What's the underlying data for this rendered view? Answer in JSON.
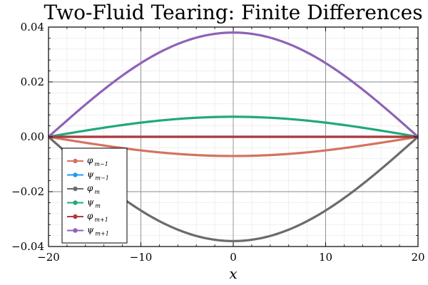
{
  "chart_data": {
    "type": "line",
    "title": "Two-Fluid Tearing: Finite Differences",
    "xlabel": "x",
    "ylabel": "",
    "xlim": [
      -20,
      20
    ],
    "ylim": [
      -0.04,
      0.04
    ],
    "xticks": [
      -20,
      -10,
      0,
      10,
      20
    ],
    "xtick_labels": [
      "−20",
      "−10",
      "0",
      "10",
      "20"
    ],
    "yticks": [
      -0.04,
      -0.02,
      0.0,
      0.02,
      0.04
    ],
    "ytick_labels": [
      "−0.04",
      "−0.02",
      "0.00",
      "0.02",
      "0.04"
    ],
    "grid": true,
    "legend_position": "bottom-left",
    "x": [
      -20,
      -15,
      -10,
      -5,
      0,
      5,
      10,
      15,
      20
    ],
    "series": [
      {
        "name": "φ_{m−1}",
        "base": "φ",
        "sub": "m−1",
        "color": "#d4735e",
        "values": [
          0,
          -0.0027,
          -0.005,
          -0.0065,
          -0.007,
          -0.0065,
          -0.005,
          -0.0027,
          0
        ]
      },
      {
        "name": "ψ_{m−1}",
        "base": "ψ",
        "sub": "m−1",
        "color": "#1f9cf0",
        "values": [
          0,
          0,
          0,
          0,
          0,
          0,
          0,
          0,
          0
        ]
      },
      {
        "name": "φ_m",
        "base": "φ",
        "sub": "m",
        "color": "#6b6b6b",
        "values": [
          0,
          -0.0145,
          -0.0268,
          -0.0351,
          -0.038,
          -0.0351,
          -0.0268,
          -0.0145,
          0
        ]
      },
      {
        "name": "ψ_m",
        "base": "ψ",
        "sub": "m",
        "color": "#20a87c",
        "values": [
          0,
          0.0028,
          0.0052,
          0.0068,
          0.0073,
          0.0068,
          0.0052,
          0.0028,
          0
        ]
      },
      {
        "name": "φ_{m+1}",
        "base": "φ",
        "sub": "m+1",
        "color": "#b23a3a",
        "values": [
          0,
          0,
          0,
          0,
          0,
          0,
          0,
          0,
          0
        ]
      },
      {
        "name": "ψ_{m+1}",
        "base": "ψ",
        "sub": "m+1",
        "color": "#8e62b8",
        "values": [
          0,
          0.0145,
          0.0268,
          0.0351,
          0.038,
          0.0351,
          0.0268,
          0.0145,
          0
        ]
      }
    ]
  }
}
